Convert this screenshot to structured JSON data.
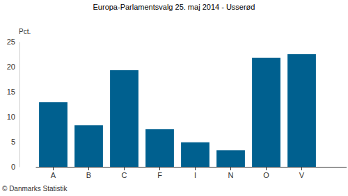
{
  "chart_data": {
    "type": "bar",
    "title": "Europa-Parlamentsvalg 25. maj 2014 - Usserød",
    "ylabel": "Pct.",
    "annotations": [
      "© Danmarks Statistik"
    ],
    "categories": [
      "A",
      "B",
      "C",
      "F",
      "I",
      "N",
      "O",
      "V"
    ],
    "values": [
      12.9,
      8.3,
      19.3,
      7.5,
      4.9,
      3.3,
      21.8,
      22.5
    ],
    "color": "#00608f",
    "ylim": [
      0,
      25
    ],
    "yticks": [
      0,
      5,
      10,
      15,
      20,
      25
    ],
    "grid": false
  }
}
